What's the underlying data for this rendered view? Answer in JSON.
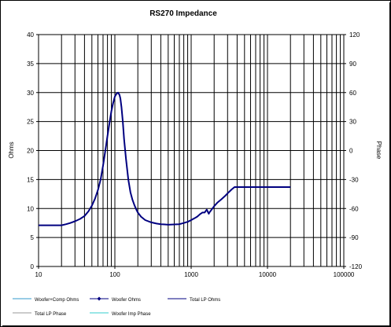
{
  "chart_data": {
    "type": "line",
    "title": "RS270  Impedance",
    "xlabel": "",
    "ylabel": "Ohms",
    "y2label": "Phase",
    "x_scale": "log",
    "xlim": [
      10,
      100000
    ],
    "ylim": [
      0,
      40
    ],
    "y2lim": [
      -120,
      120
    ],
    "x_tick_labels": [
      "10",
      "100",
      "1000",
      "10000",
      "100000"
    ],
    "y_tick_labels": [
      "0",
      "5",
      "10",
      "15",
      "20",
      "25",
      "30",
      "35",
      "40"
    ],
    "y2_tick_labels": [
      "-120",
      "-90",
      "-60",
      "-30",
      "0",
      "30",
      "60",
      "90",
      "120"
    ],
    "grid": true,
    "legend_position": "bottom",
    "legend": [
      {
        "label": "Woofer+Comp Ohms",
        "color": "#3399cc",
        "marker": "none"
      },
      {
        "label": "Woofer Ohms",
        "color": "#000080",
        "marker": "diamond"
      },
      {
        "label": "Total LP Ohms",
        "color": "#000080",
        "marker": "none"
      },
      {
        "label": "Total LP Phase",
        "color": "#999999",
        "marker": "none"
      },
      {
        "label": "Woofer Imp Phase",
        "color": "#33cccc",
        "marker": "none"
      }
    ],
    "series": [
      {
        "name": "Total LP Ohms",
        "color": "#000080",
        "x": [
          10,
          15,
          20,
          23,
          26,
          30,
          35,
          40,
          45,
          50,
          55,
          60,
          65,
          70,
          75,
          80,
          85,
          90,
          95,
          100,
          105,
          110,
          115,
          118,
          122,
          127,
          132,
          140,
          150,
          160,
          170,
          180,
          190,
          200,
          220,
          250,
          300,
          350,
          400,
          450,
          500,
          600,
          700,
          800,
          900,
          1000,
          1100,
          1200,
          1300,
          1400,
          1500,
          1600,
          1700,
          1750,
          1800,
          1900,
          2000,
          2200,
          2500,
          2800,
          3100,
          3400,
          3700,
          4000,
          5000,
          7000,
          10000,
          15000,
          20000
        ],
        "y": [
          7.1,
          7.1,
          7.1,
          7.3,
          7.5,
          7.8,
          8.2,
          8.7,
          9.5,
          10.5,
          11.7,
          13.2,
          15.0,
          17.4,
          20.0,
          22.5,
          24.8,
          26.8,
          28.2,
          29.3,
          29.8,
          30.0,
          29.6,
          29.0,
          27.5,
          25.0,
          22.0,
          18.5,
          15.0,
          12.8,
          11.5,
          10.6,
          9.9,
          9.3,
          8.6,
          8.0,
          7.6,
          7.4,
          7.3,
          7.25,
          7.2,
          7.25,
          7.3,
          7.5,
          7.7,
          8.0,
          8.3,
          8.6,
          9.0,
          9.3,
          9.3,
          9.8,
          9.1,
          9.4,
          9.6,
          10.0,
          10.4,
          11.0,
          11.6,
          12.2,
          12.8,
          13.3,
          13.7,
          13.7,
          13.7,
          13.7,
          13.7,
          13.7,
          13.7
        ]
      }
    ]
  }
}
